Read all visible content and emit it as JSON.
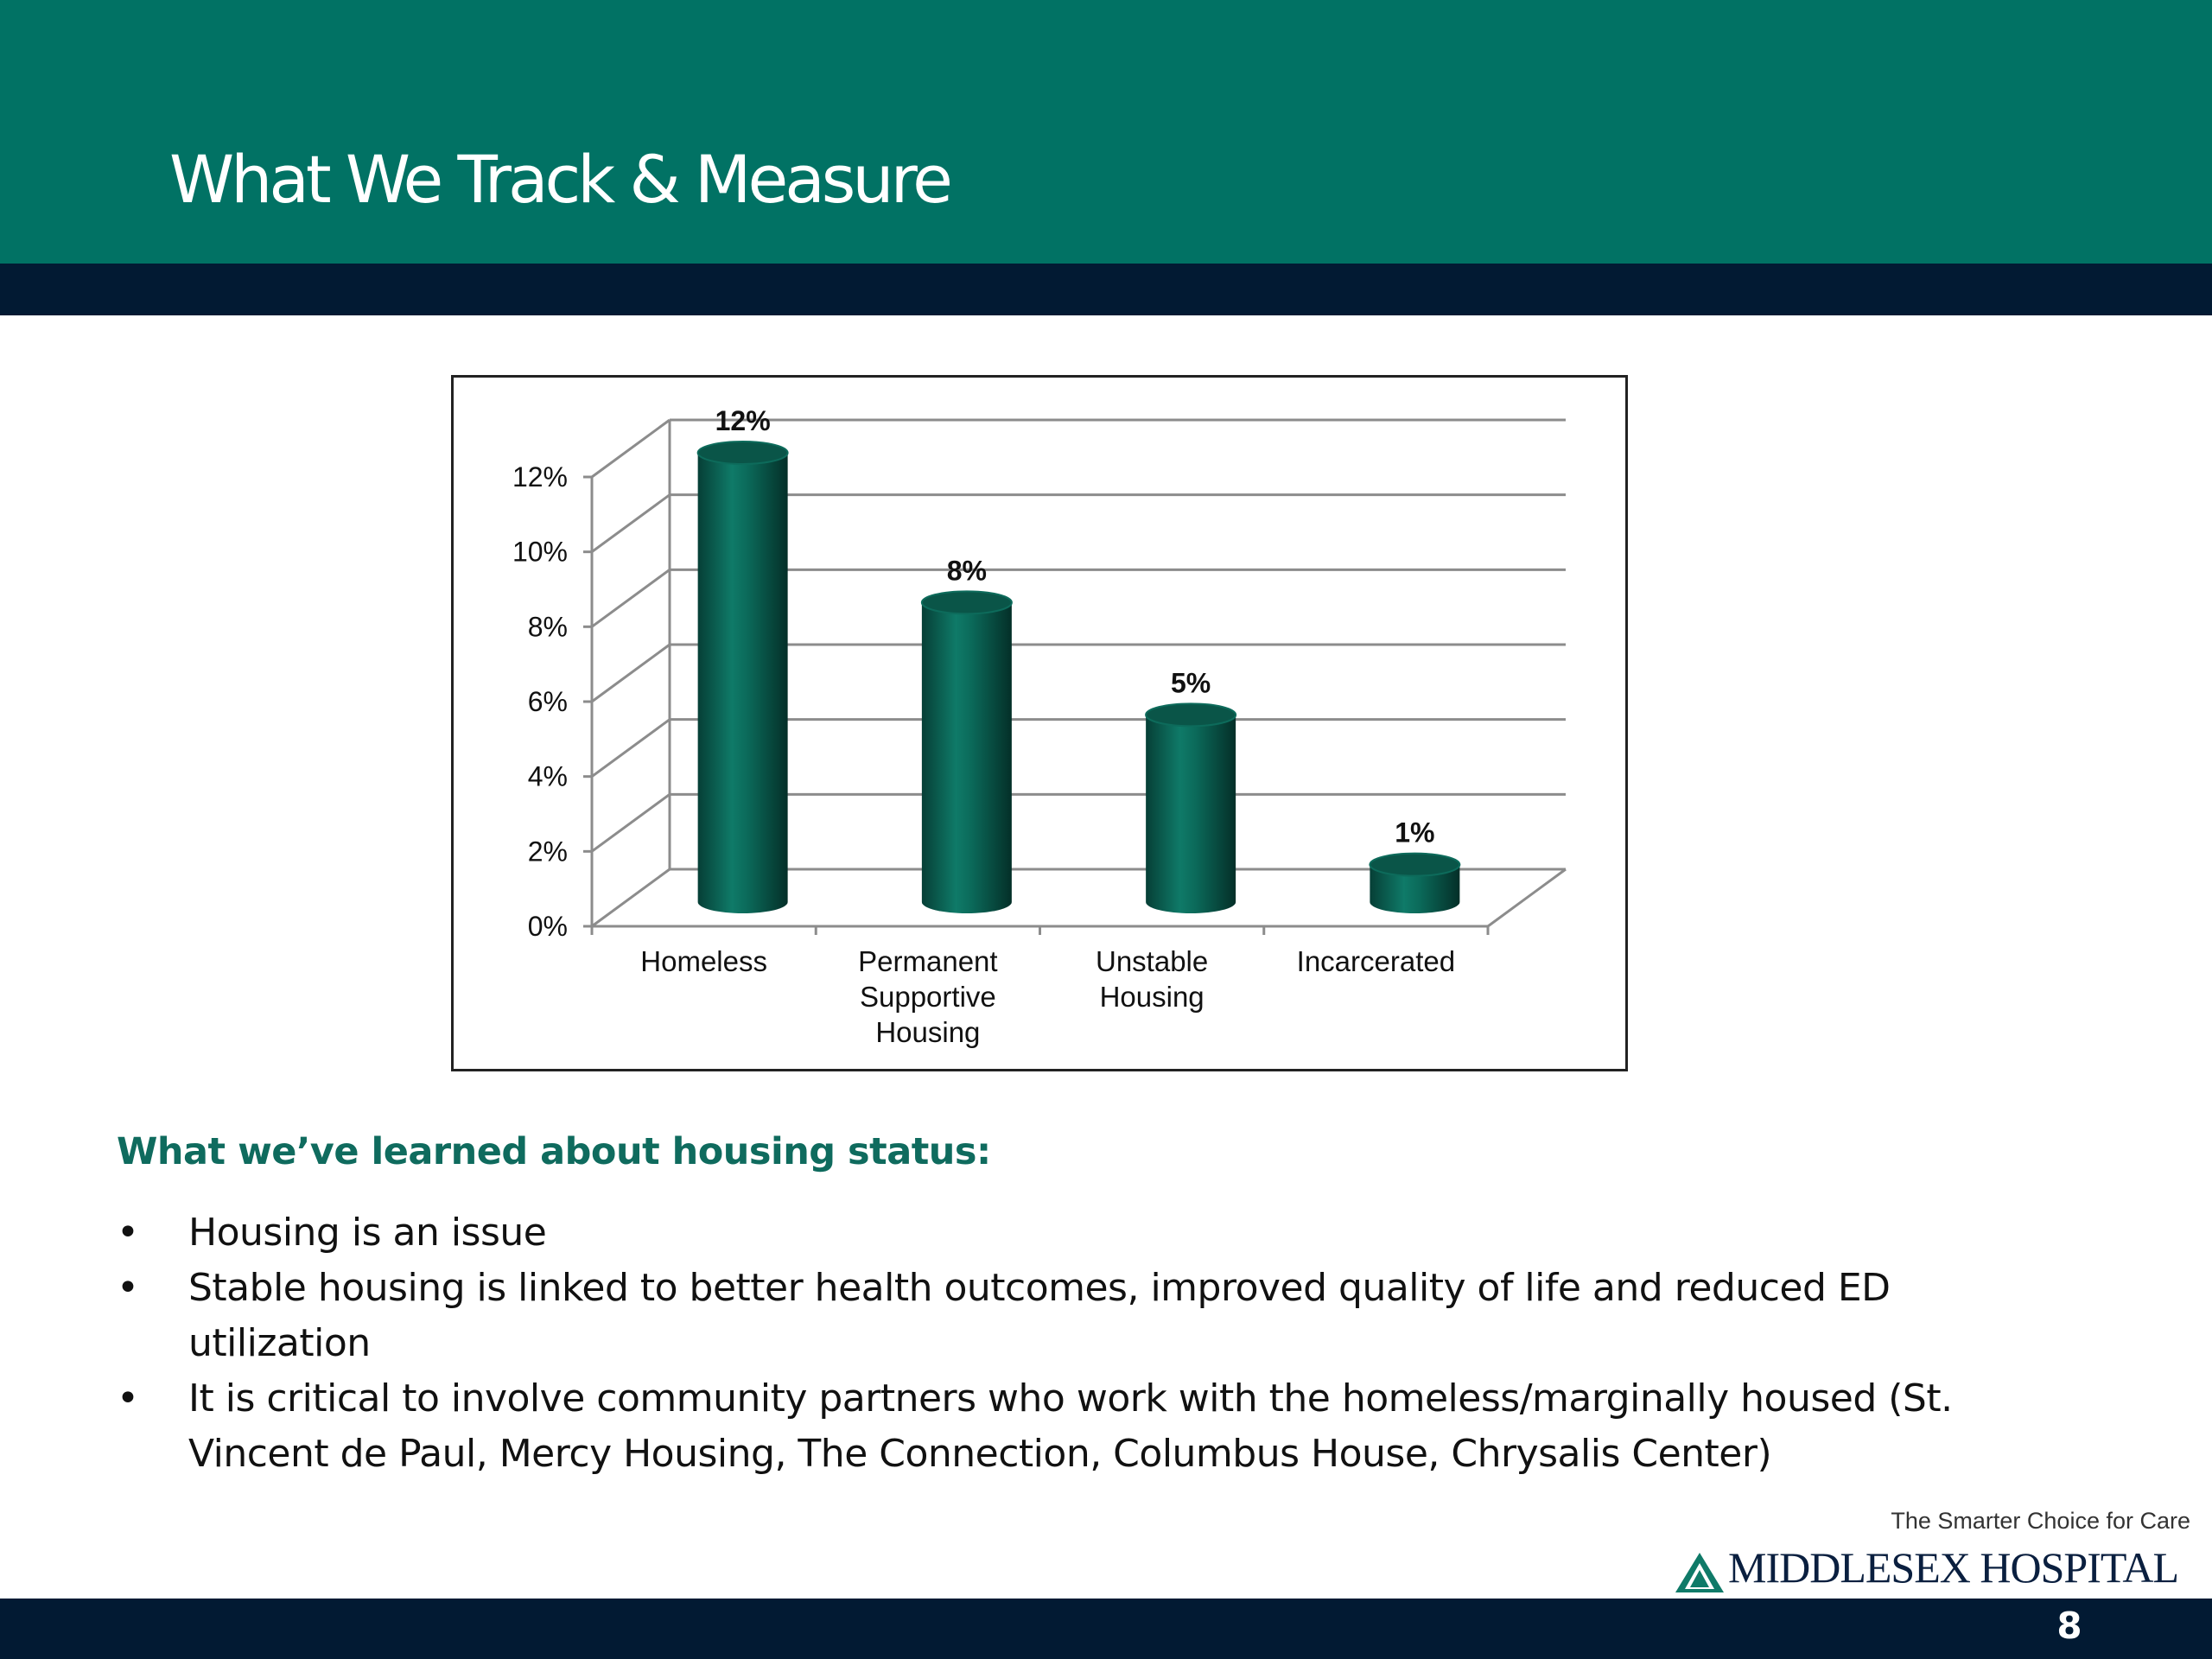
{
  "header": {
    "title": "What We Track & Measure"
  },
  "chart_data": {
    "type": "bar",
    "categories": [
      "Homeless",
      "Permanent Supportive Housing",
      "Unstable Housing",
      "Incarcerated"
    ],
    "category_label_lines": [
      [
        "Homeless"
      ],
      [
        "Permanent",
        "Supportive",
        "Housing"
      ],
      [
        "Unstable",
        "Housing"
      ],
      [
        "Incarcerated"
      ]
    ],
    "values": [
      12,
      8,
      5,
      1
    ],
    "data_labels": [
      "12%",
      "8%",
      "5%",
      "1%"
    ],
    "ylim": [
      0,
      12
    ],
    "yticks": [
      "0%",
      "2%",
      "4%",
      "6%",
      "8%",
      "10%",
      "12%"
    ],
    "title": "",
    "xlabel": "",
    "ylabel": "",
    "grid": true,
    "legend": "none",
    "style": "3d-cylinder",
    "bar_color": "#0a5c4f"
  },
  "learned": {
    "heading": "What we’ve learned about housing status:",
    "bullet_symbol": "•",
    "bullets": [
      {
        "lines": [
          "Housing is an issue"
        ]
      },
      {
        "lines": [
          "Stable housing is linked to better health outcomes, improved quality of life and reduced ED",
          "utilization"
        ]
      },
      {
        "lines": [
          "It is critical to involve community partners who work with the homeless/marginally housed (St.",
          "Vincent de Paul, Mercy Housing, The Connection, Columbus House, Chrysalis Center)"
        ]
      }
    ]
  },
  "footer": {
    "tagline": "The Smarter Choice for Care",
    "logo_text": "MIDDLESEX HOSPITAL",
    "page_number": "8"
  },
  "colors": {
    "header": "#017264",
    "dark_band": "#021a33",
    "heading_green": "#0f6b5e"
  }
}
